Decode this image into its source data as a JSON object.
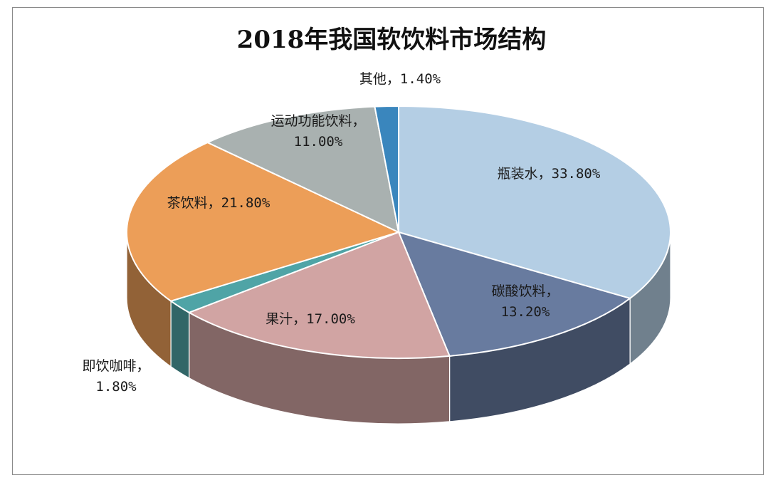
{
  "chart_data": {
    "type": "pie",
    "title": "2018年我国软饮料市场结构",
    "slices": [
      {
        "name": "瓶装水",
        "value": 33.8,
        "label_lines": [
          "瓶装水，33.80%"
        ],
        "color": "#b4cee4"
      },
      {
        "name": "碳酸饮料",
        "value": 13.2,
        "label_lines": [
          "碳酸饮料，",
          "13.20%"
        ],
        "color": "#687b9f"
      },
      {
        "name": "果汁",
        "value": 17.0,
        "label_lines": [
          "果汁，17.00%"
        ],
        "color": "#d1a4a3"
      },
      {
        "name": "即饮咖啡",
        "value": 1.8,
        "label_lines": [
          "即饮咖啡，",
          "1.80%"
        ],
        "color": "#4fa4a6"
      },
      {
        "name": "茶饮料",
        "value": 21.8,
        "label_lines": [
          "茶饮料，21.80%"
        ],
        "color": "#ec9e58"
      },
      {
        "name": "运动功能饮料",
        "value": 11.0,
        "label_lines": [
          "运动功能饮料，",
          "11.00%"
        ],
        "color": "#a9b1b0"
      },
      {
        "name": "其他",
        "value": 1.4,
        "label_lines": [
          "其他，1.40%"
        ],
        "color": "#3a86bd"
      }
    ]
  }
}
